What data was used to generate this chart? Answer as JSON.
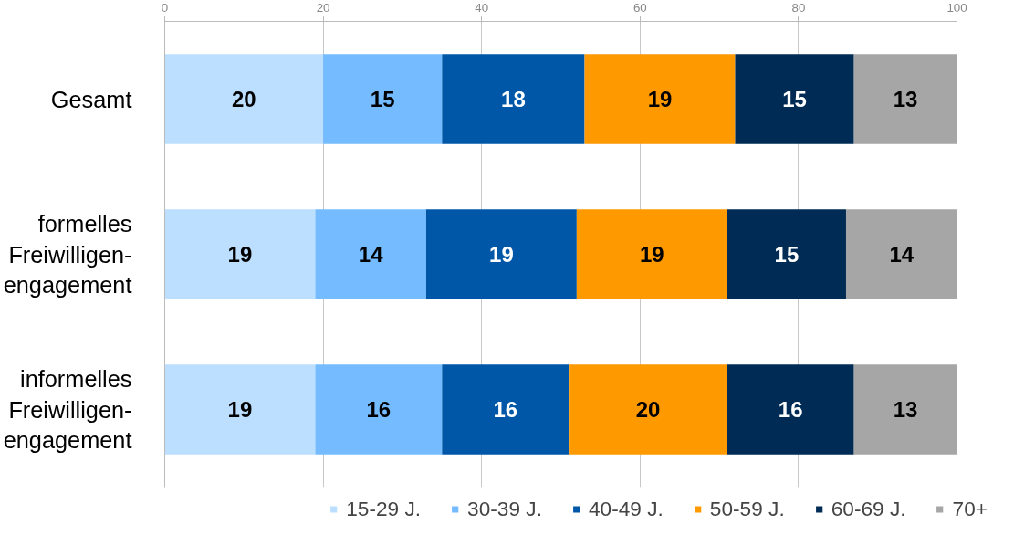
{
  "chart_data": {
    "type": "bar",
    "orientation": "horizontal",
    "stacked": true,
    "data_labels": true,
    "grid": "x",
    "legend": "bottom",
    "categories": [
      "Gesamt",
      "formelles\nFreiwilligen-\nengagement",
      "informelles\nFreiwilligen-\nengagement"
    ],
    "xlim": [
      0,
      100
    ],
    "xticks": [
      0,
      20,
      40,
      60,
      80,
      100
    ],
    "series": [
      {
        "name": "15-29 J.",
        "color": "#bddfff",
        "values": [
          20,
          19,
          19
        ]
      },
      {
        "name": "30-39 J.",
        "color": "#74bbff",
        "values": [
          15,
          14,
          16
        ]
      },
      {
        "name": "40-49 J.",
        "color": "#0057a8",
        "values": [
          18,
          19,
          16
        ]
      },
      {
        "name": "50-59 J.",
        "color": "#ff9900",
        "values": [
          19,
          19,
          20
        ]
      },
      {
        "name": "60-69 J.",
        "color": "#002b54",
        "values": [
          15,
          15,
          16
        ]
      },
      {
        "name": "70+",
        "color": "#a6a6a6",
        "values": [
          13,
          14,
          13
        ]
      }
    ]
  }
}
